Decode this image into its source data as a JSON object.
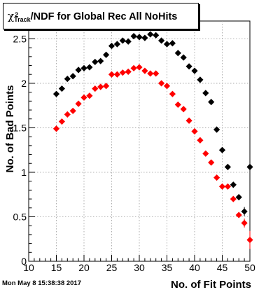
{
  "title": {
    "symbol": "χ",
    "superscript": "2",
    "subscript": "Track",
    "text": "/NDF for Global Rec All NoHits"
  },
  "timestamp": "Mon May  8 15:38:38 2017",
  "chart_data": {
    "type": "scatter",
    "xlabel": "No. of Fit Points",
    "ylabel": "No. of Bad Points",
    "xlim": [
      10,
      50
    ],
    "ylim": [
      0,
      2.7
    ],
    "x_ticks": [
      "10",
      "15",
      "20",
      "25",
      "30",
      "35",
      "40",
      "45",
      "50"
    ],
    "y_ticks": [
      "0",
      "0.5",
      "1",
      "1.5",
      "2",
      "2.5"
    ],
    "grid": true,
    "series": [
      {
        "color": "#000000",
        "points": [
          {
            "x": 15,
            "y": 1.88
          },
          {
            "x": 16,
            "y": 1.94
          },
          {
            "x": 17,
            "y": 2.05
          },
          {
            "x": 18,
            "y": 2.08
          },
          {
            "x": 19,
            "y": 2.15
          },
          {
            "x": 20,
            "y": 2.17
          },
          {
            "x": 21,
            "y": 2.18
          },
          {
            "x": 22,
            "y": 2.24
          },
          {
            "x": 23,
            "y": 2.25
          },
          {
            "x": 24,
            "y": 2.32
          },
          {
            "x": 25,
            "y": 2.42
          },
          {
            "x": 26,
            "y": 2.44
          },
          {
            "x": 27,
            "y": 2.48
          },
          {
            "x": 28,
            "y": 2.47
          },
          {
            "x": 29,
            "y": 2.53
          },
          {
            "x": 30,
            "y": 2.52
          },
          {
            "x": 31,
            "y": 2.51
          },
          {
            "x": 32,
            "y": 2.55
          },
          {
            "x": 33,
            "y": 2.54
          },
          {
            "x": 34,
            "y": 2.48
          },
          {
            "x": 35,
            "y": 2.44
          },
          {
            "x": 36,
            "y": 2.45
          },
          {
            "x": 37,
            "y": 2.34
          },
          {
            "x": 38,
            "y": 2.29
          },
          {
            "x": 39,
            "y": 2.19
          },
          {
            "x": 40,
            "y": 2.14
          },
          {
            "x": 41,
            "y": 2.04
          },
          {
            "x": 42,
            "y": 1.89
          },
          {
            "x": 43,
            "y": 1.79
          },
          {
            "x": 44,
            "y": 1.48
          },
          {
            "x": 45,
            "y": 1.25
          },
          {
            "x": 46,
            "y": 1.06
          },
          {
            "x": 47,
            "y": 0.86
          },
          {
            "x": 48,
            "y": 0.72
          },
          {
            "x": 49,
            "y": 0.56,
            "err": 0.05
          },
          {
            "x": 50,
            "y": 1.06,
            "err": 0.36
          }
        ]
      },
      {
        "color": "#ff0000",
        "points": [
          {
            "x": 15,
            "y": 1.49
          },
          {
            "x": 16,
            "y": 1.57
          },
          {
            "x": 17,
            "y": 1.65
          },
          {
            "x": 18,
            "y": 1.69
          },
          {
            "x": 19,
            "y": 1.77
          },
          {
            "x": 20,
            "y": 1.84
          },
          {
            "x": 21,
            "y": 1.86
          },
          {
            "x": 22,
            "y": 1.94
          },
          {
            "x": 23,
            "y": 1.96
          },
          {
            "x": 24,
            "y": 1.97
          },
          {
            "x": 25,
            "y": 2.1
          },
          {
            "x": 26,
            "y": 2.1
          },
          {
            "x": 27,
            "y": 2.12
          },
          {
            "x": 28,
            "y": 2.13
          },
          {
            "x": 29,
            "y": 2.17
          },
          {
            "x": 30,
            "y": 2.18
          },
          {
            "x": 31,
            "y": 2.14
          },
          {
            "x": 32,
            "y": 2.11
          },
          {
            "x": 33,
            "y": 2.11
          },
          {
            "x": 34,
            "y": 2.0
          },
          {
            "x": 35,
            "y": 1.97
          },
          {
            "x": 36,
            "y": 1.88
          },
          {
            "x": 37,
            "y": 1.76
          },
          {
            "x": 38,
            "y": 1.71
          },
          {
            "x": 39,
            "y": 1.58
          },
          {
            "x": 40,
            "y": 1.46
          },
          {
            "x": 41,
            "y": 1.36
          },
          {
            "x": 42,
            "y": 1.21
          },
          {
            "x": 43,
            "y": 1.11
          },
          {
            "x": 44,
            "y": 0.94
          },
          {
            "x": 45,
            "y": 0.84
          },
          {
            "x": 46,
            "y": 0.84
          },
          {
            "x": 47,
            "y": 0.7
          },
          {
            "x": 48,
            "y": 0.52
          },
          {
            "x": 49,
            "y": 0.43,
            "err": 0.05
          },
          {
            "x": 50,
            "y": 0.24,
            "err": 0.1
          }
        ]
      }
    ]
  }
}
